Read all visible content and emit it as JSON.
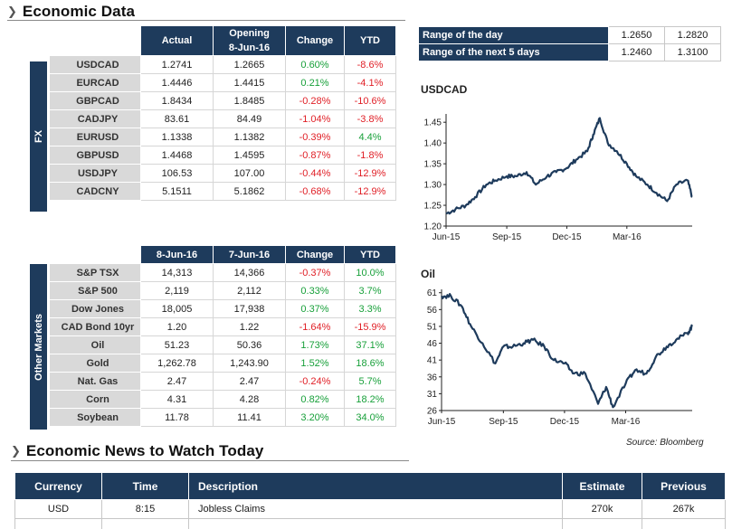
{
  "economic_data": {
    "title": "Economic Data"
  },
  "fx": {
    "side_label": "FX",
    "headers": [
      "Actual",
      "Opening\n8-Jun-16",
      "Change",
      "YTD"
    ],
    "rows": [
      {
        "name": "USDCAD",
        "actual": "1.2741",
        "opening": "1.2665",
        "change": "0.60%",
        "ytd": "-8.6%"
      },
      {
        "name": "EURCAD",
        "actual": "1.4446",
        "opening": "1.4415",
        "change": "0.21%",
        "ytd": "-4.1%"
      },
      {
        "name": "GBPCAD",
        "actual": "1.8434",
        "opening": "1.8485",
        "change": "-0.28%",
        "ytd": "-10.6%"
      },
      {
        "name": "CADJPY",
        "actual": "83.61",
        "opening": "84.49",
        "change": "-1.04%",
        "ytd": "-3.8%"
      },
      {
        "name": "EURUSD",
        "actual": "1.1338",
        "opening": "1.1382",
        "change": "-0.39%",
        "ytd": "4.4%"
      },
      {
        "name": "GBPUSD",
        "actual": "1.4468",
        "opening": "1.4595",
        "change": "-0.87%",
        "ytd": "-1.8%"
      },
      {
        "name": "USDJPY",
        "actual": "106.53",
        "opening": "107.00",
        "change": "-0.44%",
        "ytd": "-12.9%"
      },
      {
        "name": "CADCNY",
        "actual": "5.1511",
        "opening": "5.1862",
        "change": "-0.68%",
        "ytd": "-12.9%"
      }
    ]
  },
  "other_markets": {
    "side_label": "Other Markets",
    "headers": [
      "8-Jun-16",
      "7-Jun-16",
      "Change",
      "YTD"
    ],
    "rows": [
      {
        "name": "S&P TSX",
        "d1": "14,313",
        "d2": "14,366",
        "change": "-0.37%",
        "ytd": "10.0%"
      },
      {
        "name": "S&P 500",
        "d1": "2,119",
        "d2": "2,112",
        "change": "0.33%",
        "ytd": "3.7%"
      },
      {
        "name": "Dow Jones",
        "d1": "18,005",
        "d2": "17,938",
        "change": "0.37%",
        "ytd": "3.3%"
      },
      {
        "name": "CAD Bond 10yr",
        "d1": "1.20",
        "d2": "1.22",
        "change": "-1.64%",
        "ytd": "-15.9%"
      },
      {
        "name": "Oil",
        "d1": "51.23",
        "d2": "50.36",
        "change": "1.73%",
        "ytd": "37.1%"
      },
      {
        "name": "Gold",
        "d1": "1,262.78",
        "d2": "1,243.90",
        "change": "1.52%",
        "ytd": "18.6%"
      },
      {
        "name": "Nat. Gas",
        "d1": "2.47",
        "d2": "2.47",
        "change": "-0.24%",
        "ytd": "5.7%"
      },
      {
        "name": "Corn",
        "d1": "4.31",
        "d2": "4.28",
        "change": "0.82%",
        "ytd": "18.2%"
      },
      {
        "name": "Soybean",
        "d1": "11.78",
        "d2": "11.41",
        "change": "3.20%",
        "ytd": "34.0%"
      }
    ]
  },
  "range": {
    "rows": [
      {
        "label": "Range of the day",
        "low": "1.2650",
        "high": "1.2820"
      },
      {
        "label": "Range of the next 5 days",
        "low": "1.2460",
        "high": "1.3100"
      }
    ]
  },
  "colors": {
    "header": "#1e3b5c",
    "positive": "#18a03a",
    "negative": "#e01f26",
    "row_label_bg": "#d9d9d9",
    "line": "#1e3b5c"
  },
  "chart_data": [
    {
      "type": "line",
      "title": "USDCAD",
      "xlabel": "",
      "ylabel": "",
      "x_ticks": [
        "Jun-15",
        "Sep-15",
        "Dec-15",
        "Mar-16"
      ],
      "y_ticks": [
        "1.20",
        "1.25",
        "1.30",
        "1.35",
        "1.40",
        "1.45"
      ],
      "ylim": [
        1.2,
        1.47
      ],
      "xlim": [
        "2015-06-01",
        "2016-06-08"
      ],
      "grid": false,
      "series": [
        {
          "x": [
            "2015-06-01",
            "2015-06-15",
            "2015-07-01",
            "2015-07-15",
            "2015-08-01",
            "2015-08-15",
            "2015-09-01",
            "2015-09-15",
            "2015-10-01",
            "2015-10-15",
            "2015-11-01",
            "2015-11-15",
            "2015-12-01",
            "2015-12-15",
            "2016-01-01",
            "2016-01-10",
            "2016-01-20",
            "2016-02-01",
            "2016-02-15",
            "2016-03-01",
            "2016-03-15",
            "2016-04-01",
            "2016-04-15",
            "2016-05-01",
            "2016-05-15",
            "2016-06-01",
            "2016-06-08"
          ],
          "values": [
            1.23,
            1.24,
            1.25,
            1.27,
            1.3,
            1.31,
            1.32,
            1.32,
            1.33,
            1.3,
            1.32,
            1.33,
            1.34,
            1.36,
            1.38,
            1.42,
            1.46,
            1.4,
            1.38,
            1.35,
            1.32,
            1.3,
            1.28,
            1.26,
            1.3,
            1.31,
            1.27
          ]
        }
      ]
    },
    {
      "type": "line",
      "title": "Oil",
      "xlabel": "",
      "ylabel": "",
      "x_ticks": [
        "Jun-15",
        "Sep-15",
        "Dec-15",
        "Mar-16"
      ],
      "y_ticks": [
        "26",
        "31",
        "36",
        "41",
        "46",
        "51",
        "56",
        "61"
      ],
      "ylim": [
        26,
        62
      ],
      "xlim": [
        "2015-06-01",
        "2016-06-08"
      ],
      "grid": false,
      "series": [
        {
          "x": [
            "2015-06-01",
            "2015-06-15",
            "2015-07-01",
            "2015-07-15",
            "2015-08-01",
            "2015-08-20",
            "2015-09-01",
            "2015-09-15",
            "2015-10-01",
            "2015-10-15",
            "2015-11-01",
            "2015-11-15",
            "2015-12-01",
            "2015-12-15",
            "2016-01-01",
            "2016-01-20",
            "2016-02-01",
            "2016-02-11",
            "2016-03-01",
            "2016-03-15",
            "2016-04-01",
            "2016-04-15",
            "2016-05-01",
            "2016-05-15",
            "2016-06-01",
            "2016-06-08"
          ],
          "values": [
            60,
            60,
            57,
            51,
            46,
            40,
            45,
            45,
            46,
            47,
            45,
            41,
            40,
            37,
            37,
            28,
            33,
            27,
            34,
            38,
            37,
            42,
            45,
            47,
            49,
            51
          ]
        }
      ]
    }
  ],
  "source": "Source: Bloomberg",
  "news": {
    "title": "Economic News to Watch Today",
    "headers": [
      "Currency",
      "Time",
      "Description",
      "Estimate",
      "Previous"
    ],
    "rows": [
      {
        "currency": "USD",
        "time": "8:15",
        "description": "Jobless Claims",
        "estimate": "270k",
        "previous": "267k"
      }
    ]
  }
}
